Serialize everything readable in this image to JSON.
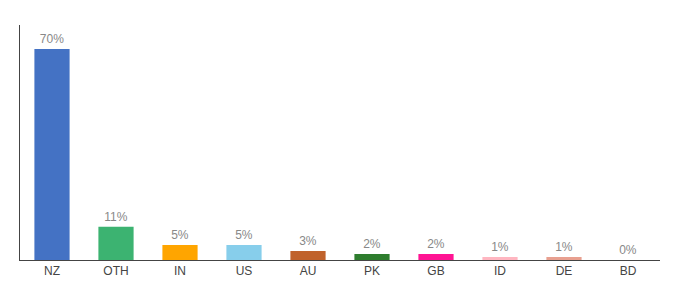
{
  "chart_data": {
    "type": "bar",
    "categories": [
      "NZ",
      "OTH",
      "IN",
      "US",
      "AU",
      "PK",
      "GB",
      "ID",
      "DE",
      "BD"
    ],
    "values": [
      70,
      11,
      5,
      5,
      3,
      2,
      2,
      1,
      1,
      0
    ],
    "value_labels": [
      "70%",
      "11%",
      "5%",
      "5%",
      "3%",
      "2%",
      "2%",
      "1%",
      "1%",
      "0%"
    ],
    "colors": [
      "#4472C4",
      "#3CB371",
      "#FFA500",
      "#87CEEB",
      "#C0622B",
      "#2E7D2E",
      "#FF1493",
      "#FFB6C1",
      "#E8A090",
      "#FF69B4"
    ],
    "ylim": [
      0,
      78
    ],
    "data_labels": true,
    "tick_labels": "x",
    "grid": false
  }
}
